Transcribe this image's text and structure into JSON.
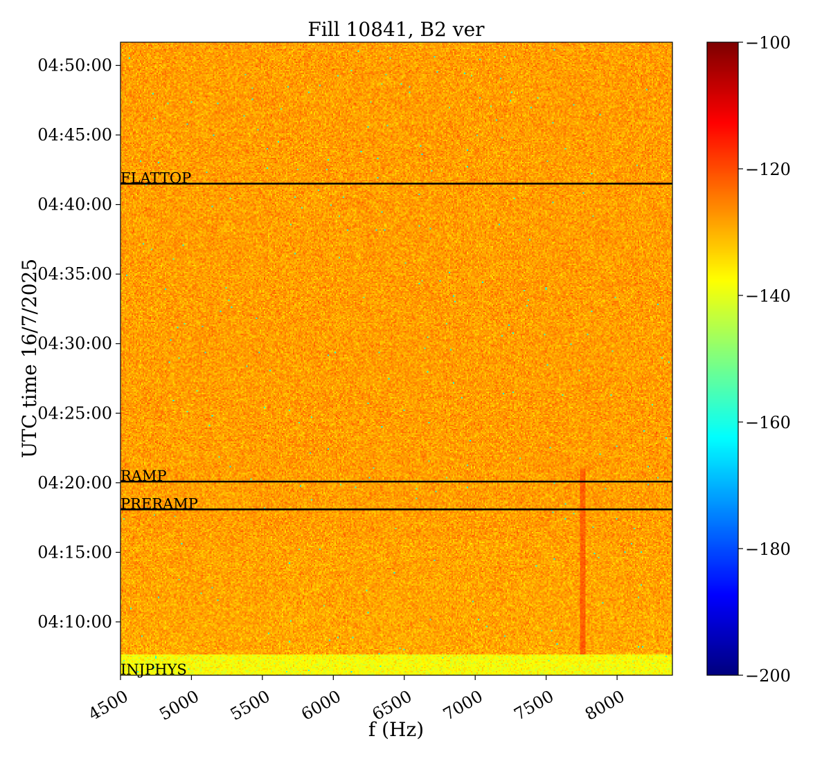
{
  "chart_data": {
    "type": "heatmap",
    "title": "Fill 10841, B2 ver",
    "xlabel": "f (Hz)",
    "ylabel": "UTC time 16/7/2025",
    "xlim": [
      4500,
      8390
    ],
    "x_ticks": [
      4500,
      5000,
      5500,
      6000,
      6500,
      7000,
      7500,
      8000
    ],
    "x_tick_labels": [
      "4500",
      "5000",
      "5500",
      "6000",
      "6500",
      "7000",
      "7500",
      "8000"
    ],
    "ylim": [
      "04:06:10",
      "04:51:40"
    ],
    "y_ticks": [
      "04:10:00",
      "04:15:00",
      "04:20:00",
      "04:25:00",
      "04:30:00",
      "04:35:00",
      "04:40:00",
      "04:45:00",
      "04:50:00"
    ],
    "y_tick_labels": [
      "04:10:00",
      "04:15:00",
      "04:20:00",
      "04:25:00",
      "04:30:00",
      "04:35:00",
      "04:40:00",
      "04:45:00",
      "04:50:00"
    ],
    "colorbar": {
      "colormap": "jet",
      "vmin": -200,
      "vmax": -100,
      "ticks": [
        -200,
        -180,
        -160,
        -140,
        -120,
        -100
      ],
      "tick_labels": [
        "−200",
        "−180",
        "−160",
        "−140",
        "−120",
        "−100"
      ]
    },
    "background_level": -128,
    "features": [
      {
        "kind": "quiet band",
        "t_start": "04:06:10",
        "t_end": "04:07:40",
        "level": -138
      },
      {
        "kind": "line",
        "f": 7760,
        "t_start": "04:07:40",
        "t_end": "04:21:00",
        "level": -122
      }
    ],
    "annotations": [
      {
        "label": "FLATTOP",
        "time": "04:41:30"
      },
      {
        "label": "RAMP",
        "time": "04:20:05"
      },
      {
        "label": "PRERAMP",
        "time": "04:18:05"
      },
      {
        "label": "INJPHYS",
        "time": "04:06:10"
      }
    ],
    "grid": false
  }
}
